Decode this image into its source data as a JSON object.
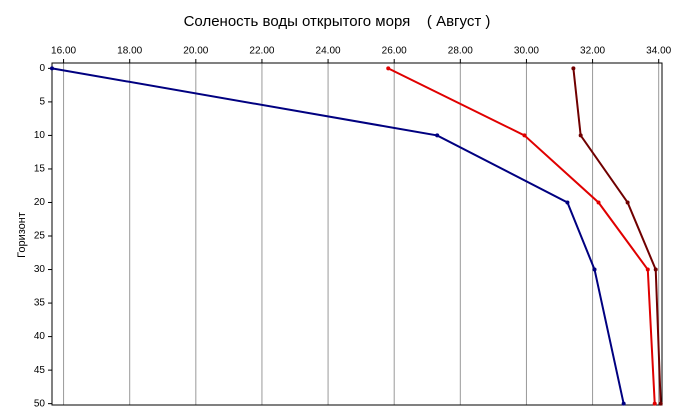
{
  "chart_data": {
    "type": "line",
    "title": "Соленость воды открытого моря    ( Август )",
    "y_label": "Горизонт",
    "y": [
      0,
      10,
      20,
      30,
      50
    ],
    "series": [
      {
        "color": "#000080",
        "values": [
          15.65,
          27.3,
          31.24,
          32.06,
          32.94
        ]
      },
      {
        "color": "#e00000",
        "values": [
          25.82,
          29.94,
          32.18,
          33.67,
          33.88
        ]
      },
      {
        "color": "#700000",
        "values": [
          31.42,
          31.64,
          33.06,
          33.91,
          34.06
        ]
      }
    ],
    "xlim": [
      15.65,
      34.1
    ],
    "xticks": [
      {
        "value": 16,
        "label": "16.00"
      },
      {
        "value": 18,
        "label": "18.00"
      },
      {
        "value": 20,
        "label": "20.00"
      },
      {
        "value": 22,
        "label": "22.00"
      },
      {
        "value": 24,
        "label": "24.00"
      },
      {
        "value": 26,
        "label": "26.00"
      },
      {
        "value": 28,
        "label": "28.00"
      },
      {
        "value": 30,
        "label": "30.00"
      },
      {
        "value": 32,
        "label": "32.00"
      },
      {
        "value": 34,
        "label": "34.00"
      }
    ],
    "ylim": [
      -0.8,
      50.2
    ],
    "yticks": [
      0,
      5,
      10,
      15,
      20,
      25,
      30,
      35,
      40,
      45,
      50
    ],
    "grid": true,
    "y_inverted": true
  }
}
